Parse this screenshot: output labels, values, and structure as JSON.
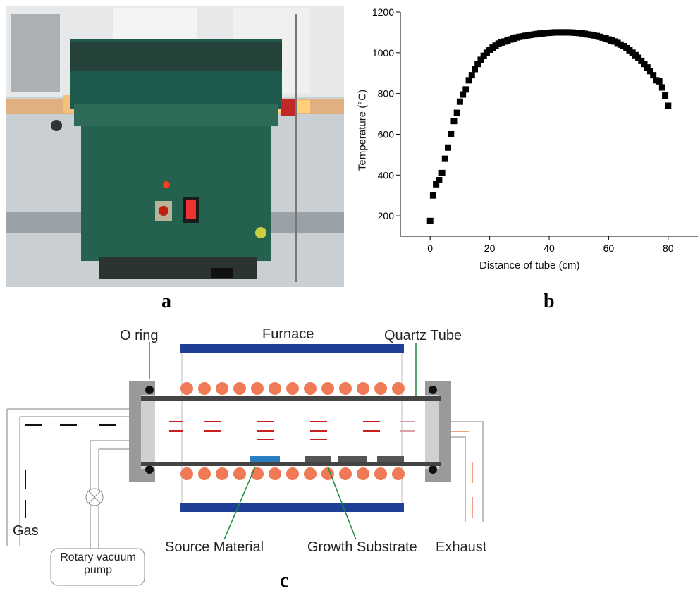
{
  "panel_labels": {
    "a": "a",
    "b": "b",
    "c": "c"
  },
  "chart_data": {
    "type": "scatter",
    "x_label": "Distance of tube (cm)",
    "y_label": "Temperature (°C)",
    "x": [
      0,
      1,
      2,
      3,
      4,
      5,
      6,
      7,
      8,
      9,
      10,
      11,
      12,
      13,
      14,
      15,
      16,
      17,
      18,
      19,
      20,
      21,
      22,
      23,
      24,
      25,
      26,
      27,
      28,
      29,
      30,
      31,
      32,
      33,
      34,
      35,
      36,
      37,
      38,
      39,
      40,
      41,
      42,
      43,
      44,
      45,
      46,
      47,
      48,
      49,
      50,
      51,
      52,
      53,
      54,
      55,
      56,
      57,
      58,
      59,
      60,
      61,
      62,
      63,
      64,
      65,
      66,
      67,
      68,
      69,
      70,
      71,
      72,
      73,
      74,
      75,
      76,
      77,
      78,
      79,
      80
    ],
    "values": [
      175,
      300,
      355,
      375,
      410,
      480,
      535,
      600,
      665,
      705,
      760,
      795,
      820,
      865,
      890,
      920,
      945,
      965,
      985,
      1000,
      1015,
      1025,
      1035,
      1045,
      1050,
      1055,
      1060,
      1065,
      1070,
      1075,
      1078,
      1080,
      1083,
      1086,
      1088,
      1090,
      1092,
      1094,
      1095,
      1097,
      1098,
      1099,
      1100,
      1100,
      1100,
      1100,
      1100,
      1100,
      1099,
      1098,
      1097,
      1095,
      1093,
      1090,
      1088,
      1085,
      1082,
      1078,
      1074,
      1070,
      1065,
      1060,
      1055,
      1048,
      1040,
      1032,
      1022,
      1012,
      1000,
      988,
      975,
      960,
      945,
      928,
      910,
      890,
      865,
      860,
      830,
      790,
      740
    ],
    "color": "#000000",
    "xlim": [
      -10,
      90
    ],
    "xticks": [
      0,
      20,
      40,
      60,
      80
    ],
    "ylim": [
      100,
      1200
    ],
    "yticks": [
      200,
      400,
      600,
      800,
      1000,
      1200
    ]
  },
  "diagram": {
    "labels": {
      "o_ring": "O ring",
      "furnace": "Furnace",
      "quartz_tube": "Quartz Tube",
      "gas": "Gas",
      "pump": "Rotary vacuum pump",
      "source": "Source Material",
      "substrate": "Growth Substrate",
      "exhaust": "Exhaust"
    }
  }
}
